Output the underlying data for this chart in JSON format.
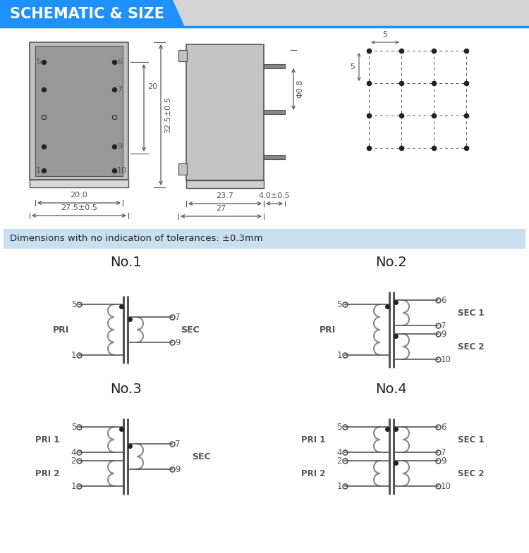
{
  "title": "SCHEMATIC & SIZE",
  "bg_color": "#ffffff",
  "header_blue": "#1e90ff",
  "header_gray": "#d4d4d4",
  "dim_note": "Dimensions with no indication of tolerances: ±0.3mm",
  "dim_note_bg": "#c8dff0",
  "line_color": "#555555",
  "coil_color": "#888888",
  "schematic_titles": [
    "No.1",
    "No.2",
    "No.3",
    "No.4"
  ],
  "body_fill": "#b0b0b0",
  "body_fill2": "#c8c8c8",
  "foot_fill": "#d0d0d0"
}
